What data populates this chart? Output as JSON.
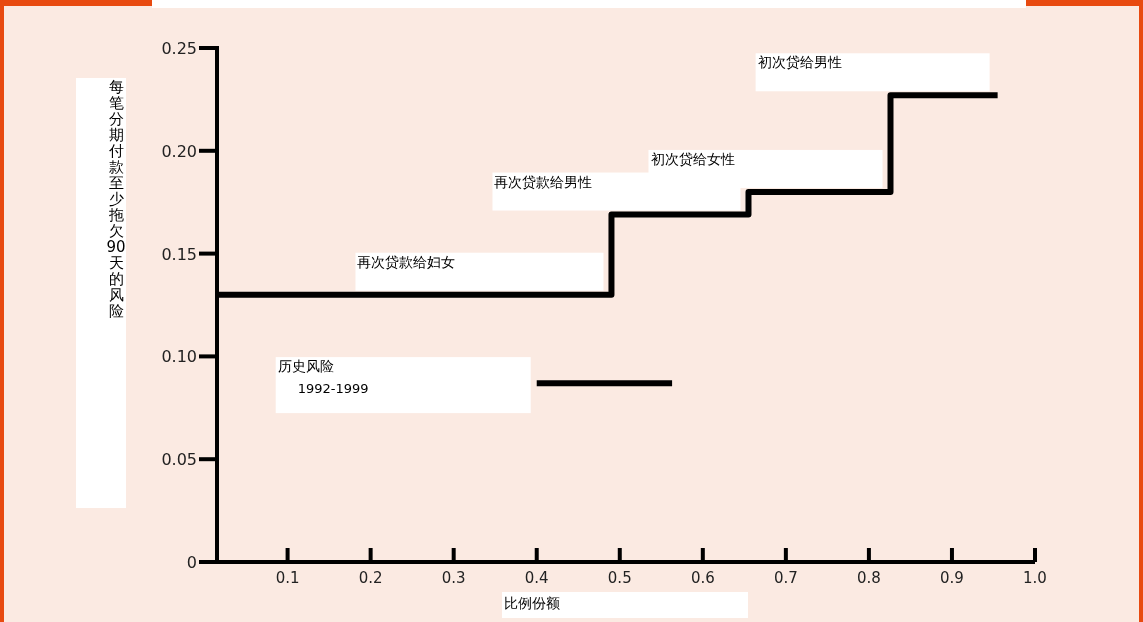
{
  "chart_data": {
    "type": "step",
    "xlabel": "比例份额",
    "ylabel": "每笔分期付款至少拖欠90天的风险",
    "xlim": [
      0.015,
      1.0
    ],
    "ylim": [
      0,
      0.25
    ],
    "xticks": [
      0.1,
      0.2,
      0.3,
      0.4,
      0.5,
      0.6,
      0.7,
      0.8,
      0.9,
      {
        "value": 1,
        "label": "1.0"
      }
    ],
    "yticks": [
      0,
      0.05,
      {
        "value": 0.1,
        "label": "0.10"
      },
      0.15,
      {
        "value": 0.2,
        "label": "0.20"
      },
      0.25
    ],
    "grid": false,
    "series": [
      {
        "type": "step",
        "color": "#000000",
        "x": [
          0.015,
          0.49,
          0.655,
          0.826,
          0.955
        ],
        "values": [
          0.13,
          0.169,
          0.18,
          0.227,
          0.227
        ]
      },
      {
        "type": "line",
        "color": "#000000",
        "x": [
          0.4,
          0.563
        ],
        "values": [
          0.087,
          0.087
        ]
      }
    ],
    "annotations": [
      "再次贷款给妇女",
      "再次贷款给男性",
      "初次贷给女性",
      "初次贷给男性",
      "历史风险",
      "1992-1999"
    ]
  }
}
